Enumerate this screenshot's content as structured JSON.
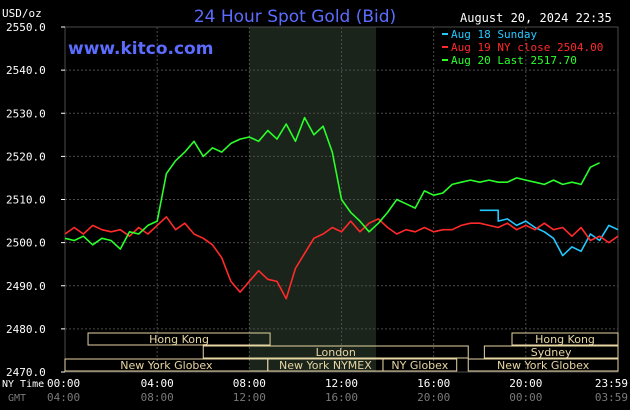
{
  "title": "24 Hour Spot Gold (Bid)",
  "timestamp": "August 20, 2024 22:35",
  "site": "www.kitco.com",
  "unit_label": "USD/oz",
  "colors": {
    "background": "#000000",
    "grid": "#4a4a4a",
    "title": "#5b6cff",
    "text": "#ffffff",
    "axis_text": "#ffffff",
    "gmt_text": "#7a7a7a",
    "session_bar": "#e7d5a3",
    "shade": "#1a241a"
  },
  "legend": [
    {
      "label": "Aug 18 Sunday",
      "color": "#22c8ff"
    },
    {
      "label": "Aug 19 NY close 2504.00",
      "color": "#ff2a2a"
    },
    {
      "label": "Aug 20 Last 2517.70",
      "color": "#2aff2a"
    }
  ],
  "sessions": [
    {
      "label": "Hong Kong",
      "row": 0,
      "start": 1.0,
      "end": 8.9
    },
    {
      "label": "Hong Kong",
      "row": 0,
      "start": 19.4,
      "end": 24.0
    },
    {
      "label": "London",
      "row": 1,
      "start": 6.0,
      "end": 17.5
    },
    {
      "label": "Sydney",
      "row": 1,
      "start": 18.2,
      "end": 24.0
    },
    {
      "label": "New York Globex",
      "row": 2,
      "start": 0.0,
      "end": 8.8
    },
    {
      "label": "New York NYMEX",
      "row": 2,
      "start": 8.8,
      "end": 13.8
    },
    {
      "label": "NY Globex",
      "row": 2,
      "start": 13.8,
      "end": 17.0
    },
    {
      "label": "New York Globex",
      "row": 2,
      "start": 17.5,
      "end": 24.0
    }
  ],
  "row_labels": [
    "NY Time",
    "GMT"
  ],
  "chart_data": {
    "type": "line",
    "ylim": [
      2470.0,
      2550.0
    ],
    "xlim": [
      0,
      24
    ],
    "yticks": [
      "2470.0",
      "2480.0",
      "2490.0",
      "2500.0",
      "2510.0",
      "2520.0",
      "2530.0",
      "2540.0",
      "2550.0"
    ],
    "xticks_ny": [
      "00:00",
      "04:00",
      "08:00",
      "12:00",
      "16:00",
      "20:00",
      "23:59"
    ],
    "xticks_gmt": [
      "04:00",
      "08:00",
      "12:00",
      "16:00",
      "20:00",
      "00:00",
      "03:59"
    ],
    "shaded_range": [
      8.0,
      13.5
    ],
    "series": [
      {
        "name": "Aug 18 Sunday",
        "color": "#22c8ff",
        "x": [
          18.0,
          18.8,
          18.8,
          19.2,
          19.6,
          20.0,
          20.4,
          20.8,
          21.2,
          21.6,
          22.0,
          22.4,
          22.8,
          23.2,
          23.6,
          24.0
        ],
        "y": [
          2507.5,
          2507.5,
          2505.0,
          2505.5,
          2504.0,
          2505.0,
          2503.5,
          2502.5,
          2501.0,
          2497.0,
          2499.0,
          2498.0,
          2502.0,
          2500.5,
          2504.0,
          2503.0
        ]
      },
      {
        "name": "Aug 19 NY close 2504.00",
        "color": "#ff2a2a",
        "x": [
          0.0,
          0.4,
          0.8,
          1.2,
          1.6,
          2.0,
          2.4,
          2.8,
          3.2,
          3.6,
          4.0,
          4.4,
          4.8,
          5.2,
          5.6,
          6.0,
          6.4,
          6.8,
          7.2,
          7.6,
          8.0,
          8.4,
          8.8,
          9.2,
          9.6,
          10.0,
          10.4,
          10.8,
          11.2,
          11.6,
          12.0,
          12.4,
          12.8,
          13.2,
          13.6,
          14.0,
          14.4,
          14.8,
          15.2,
          15.6,
          16.0,
          16.4,
          16.8,
          17.2,
          17.6,
          18.0,
          18.4,
          18.8,
          19.2,
          19.6,
          20.0,
          20.4,
          20.8,
          21.2,
          21.6,
          22.0,
          22.4,
          22.8,
          23.2,
          23.6,
          24.0
        ],
        "y": [
          2502.0,
          2503.5,
          2502.0,
          2504.0,
          2503.0,
          2502.5,
          2503.0,
          2501.5,
          2503.5,
          2502.0,
          2504.0,
          2506.0,
          2503.0,
          2504.5,
          2502.0,
          2501.0,
          2499.5,
          2496.5,
          2491.0,
          2488.5,
          2491.0,
          2493.5,
          2491.5,
          2491.0,
          2487.0,
          2494.0,
          2497.5,
          2501.0,
          2502.0,
          2503.5,
          2502.5,
          2505.0,
          2502.5,
          2504.5,
          2505.5,
          2503.5,
          2502.0,
          2503.0,
          2502.5,
          2503.5,
          2502.5,
          2503.0,
          2503.0,
          2504.0,
          2504.5,
          2504.5,
          2504.0,
          2503.5,
          2504.5,
          2503.0,
          2504.0,
          2503.0,
          2504.5,
          2503.0,
          2503.5,
          2501.5,
          2503.5,
          2500.5,
          2501.5,
          2500.0,
          2501.5
        ]
      },
      {
        "name": "Aug 20 Last 2517.70",
        "color": "#2aff2a",
        "x": [
          0.0,
          0.4,
          0.8,
          1.2,
          1.6,
          2.0,
          2.4,
          2.8,
          3.2,
          3.6,
          4.0,
          4.4,
          4.8,
          5.2,
          5.6,
          6.0,
          6.4,
          6.8,
          7.2,
          7.6,
          8.0,
          8.4,
          8.8,
          9.2,
          9.6,
          10.0,
          10.4,
          10.8,
          11.2,
          11.6,
          12.0,
          12.4,
          12.8,
          13.2,
          13.6,
          14.0,
          14.4,
          14.8,
          15.2,
          15.6,
          16.0,
          16.4,
          16.8,
          17.2,
          17.6,
          18.0,
          18.4,
          18.8,
          19.2,
          19.6,
          20.0,
          20.4,
          20.8,
          21.2,
          21.6,
          22.0,
          22.4,
          22.8,
          23.2
        ],
        "y": [
          2501.0,
          2500.5,
          2501.5,
          2499.5,
          2501.0,
          2500.5,
          2498.5,
          2502.5,
          2502.0,
          2504.0,
          2505.0,
          2516.0,
          2519.0,
          2521.0,
          2523.5,
          2520.0,
          2522.0,
          2521.0,
          2523.0,
          2524.0,
          2524.5,
          2523.5,
          2526.0,
          2524.0,
          2527.5,
          2523.5,
          2529.0,
          2525.0,
          2527.0,
          2521.0,
          2510.0,
          2507.0,
          2505.0,
          2502.5,
          2504.5,
          2507.0,
          2510.0,
          2509.0,
          2508.0,
          2512.0,
          2511.0,
          2511.5,
          2513.5,
          2514.0,
          2514.5,
          2514.0,
          2514.5,
          2514.0,
          2514.0,
          2515.0,
          2514.5,
          2514.0,
          2513.5,
          2514.5,
          2513.5,
          2514.0,
          2513.5,
          2517.5,
          2518.5
        ]
      }
    ]
  }
}
